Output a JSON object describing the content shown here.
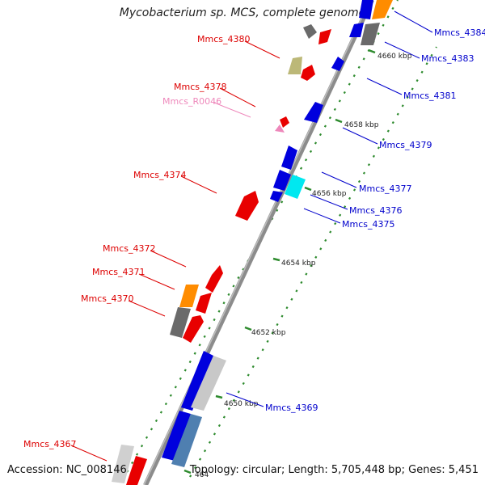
{
  "title": "Mycobacterium sp. MCS, complete genome",
  "footer": {
    "accession": "Accession: NC_008146",
    "summary": "Topology: circular; Length: 5,705,448 bp; Genes: 5,451"
  },
  "colors": {
    "backbone": "#8c8c8c",
    "tick": "#2e8b2e",
    "label_reverse": "#dd0000",
    "label_forward": "#0000cc",
    "label_rna": "#ee88bb"
  },
  "ticks": [
    "4650 kbp",
    "4652 kbp",
    "4654 kbp",
    "4656 kbp",
    "4658 kbp",
    "4660 kbp"
  ],
  "partial_tick": "464",
  "genes_left": [
    {
      "name": "Mmcs_4380"
    },
    {
      "name": "Mmcs_4378"
    },
    {
      "name": "Mmcs_R0046"
    },
    {
      "name": "Mmcs_4374"
    },
    {
      "name": "Mmcs_4372"
    },
    {
      "name": "Mmcs_4371"
    },
    {
      "name": "Mmcs_4370"
    },
    {
      "name": "Mmcs_4367"
    }
  ],
  "genes_right": [
    {
      "name": "Mmcs_4384"
    },
    {
      "name": "Mmcs_4383"
    },
    {
      "name": "Mmcs_4381"
    },
    {
      "name": "Mmcs_4379"
    },
    {
      "name": "Mmcs_4377"
    },
    {
      "name": "Mmcs_4376"
    },
    {
      "name": "Mmcs_4375"
    },
    {
      "name": "Mmcs_4369"
    }
  ]
}
